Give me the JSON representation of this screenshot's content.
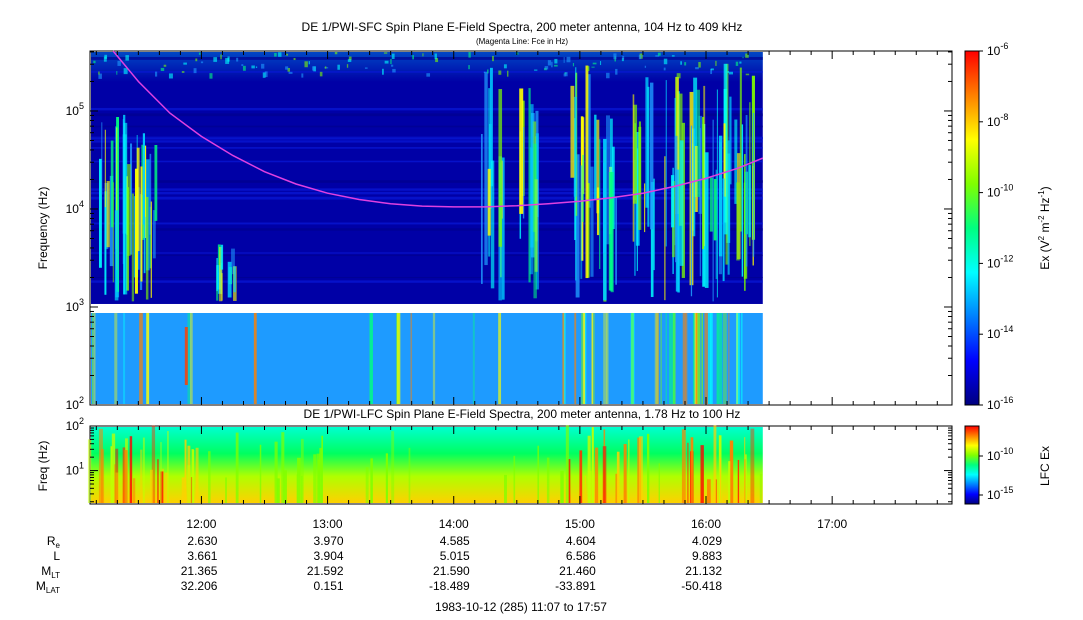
{
  "titles": {
    "sfc_title": "DE 1/PWI-SFC  Spin Plane E-Field Spectra, 200 meter antenna, 104 Hz to 409 kHz",
    "sfc_subtitle": "(Magenta Line: Fce in Hz)",
    "lfc_title": "DE 1/PWI-LFC  Spin Plane E-Field Spectra, 200 meter antenna, 1.78 Hz to 100 Hz",
    "footer": "1983-10-12 (285) 11:07 to 17:57"
  },
  "colors": {
    "background_band": "#0000a6",
    "curve": "#e040e0",
    "colormap": [
      "#00007f",
      "#0000ff",
      "#0080ff",
      "#00ffff",
      "#00ff80",
      "#80ff00",
      "#ffff00",
      "#ff8000",
      "#ff0000"
    ]
  },
  "chart_data": [
    {
      "type": "heatmap",
      "panel": "sfc",
      "title": "DE 1/PWI-SFC  Spin Plane E-Field Spectra, 200 meter antenna, 104 Hz to 409 kHz",
      "subtitle": "(Magenta Line: Fce in Hz)",
      "ylabel": "Frequency (Hz)",
      "yscale": "log",
      "ylim": [
        100,
        409000
      ],
      "y_ticks": [
        {
          "label": "10",
          "exp": "2",
          "value": 100
        },
        {
          "label": "10",
          "exp": "3",
          "value": 1000
        },
        {
          "label": "10",
          "exp": "4",
          "value": 10000
        },
        {
          "label": "10",
          "exp": "5",
          "value": 100000
        }
      ],
      "xlim": [
        "11:07",
        "17:57"
      ],
      "data_end": "16:27",
      "colorbar": {
        "label": "Ex (V",
        "label_sup1": "2",
        "label_mid": " m",
        "label_sup2": "-2",
        "label_mid2": " Hz",
        "label_sup3": "-1",
        "label_end": ")",
        "scale": "log",
        "range": [
          1e-16,
          1e-06
        ],
        "ticks": [
          {
            "label": "10",
            "exp": "-6",
            "value": 1e-06
          },
          {
            "label": "10",
            "exp": "-8",
            "value": 1e-08
          },
          {
            "label": "10",
            "exp": "-10",
            "value": 1e-10
          },
          {
            "label": "10",
            "exp": "-12",
            "value": 1e-12
          },
          {
            "label": "10",
            "exp": "-14",
            "value": 1e-14
          },
          {
            "label": "10",
            "exp": "-16",
            "value": 1e-16
          }
        ]
      },
      "series": [
        {
          "name": "Fce in Hz",
          "points": [
            [
              "11:18",
              409000
            ],
            [
              "11:30",
              200000
            ],
            [
              "11:45",
              95000
            ],
            [
              "12:00",
              55000
            ],
            [
              "12:15",
              35000
            ],
            [
              "12:30",
              24000
            ],
            [
              "12:45",
              18000
            ],
            [
              "13:00",
              14500
            ],
            [
              "13:15",
              12500
            ],
            [
              "13:30",
              11300
            ],
            [
              "13:45",
              10700
            ],
            [
              "14:00",
              10500
            ],
            [
              "14:15",
              10500
            ],
            [
              "14:30",
              10800
            ],
            [
              "14:45",
              11300
            ],
            [
              "15:00",
              12000
            ],
            [
              "15:15",
              13000
            ],
            [
              "15:30",
              14500
            ],
            [
              "15:45",
              17000
            ],
            [
              "16:00",
              20500
            ],
            [
              "16:15",
              26000
            ],
            [
              "16:27",
              33000
            ]
          ]
        }
      ]
    },
    {
      "type": "heatmap",
      "panel": "lfc",
      "title": "DE 1/PWI-LFC  Spin Plane E-Field Spectra, 200 meter antenna, 1.78 Hz to 100 Hz",
      "ylabel": "Freq (Hz)",
      "yscale": "log",
      "ylim": [
        1.78,
        100
      ],
      "y_ticks": [
        {
          "label": "10",
          "exp": "1",
          "value": 10
        },
        {
          "label": "10",
          "exp": "2",
          "value": 100
        }
      ],
      "xlim": [
        "11:07",
        "17:57"
      ],
      "data_end": "16:27",
      "colorbar": {
        "label": "LFC Ex",
        "scale": "log",
        "ticks": [
          {
            "label": "10",
            "exp": "-10",
            "value": 1e-10
          },
          {
            "label": "10",
            "exp": "-15",
            "value": 1e-15
          }
        ]
      }
    }
  ],
  "axis": {
    "time_ticks": [
      "12:00",
      "13:00",
      "14:00",
      "15:00",
      "16:00",
      "17:00"
    ],
    "ephemeris": [
      {
        "label": "R",
        "sub": "e",
        "values": [
          "2.630",
          "3.970",
          "4.585",
          "4.604",
          "4.029"
        ]
      },
      {
        "label": "L",
        "sub": "",
        "values": [
          "3.661",
          "3.904",
          "5.015",
          "6.586",
          "9.883"
        ]
      },
      {
        "label": "M",
        "sub": "LT",
        "values": [
          "21.365",
          "21.592",
          "21.590",
          "21.460",
          "21.132"
        ]
      },
      {
        "label": "M",
        "sub": "LAT",
        "values": [
          "32.206",
          "0.151",
          "-18.489",
          "-33.891",
          "-50.418"
        ]
      }
    ]
  }
}
